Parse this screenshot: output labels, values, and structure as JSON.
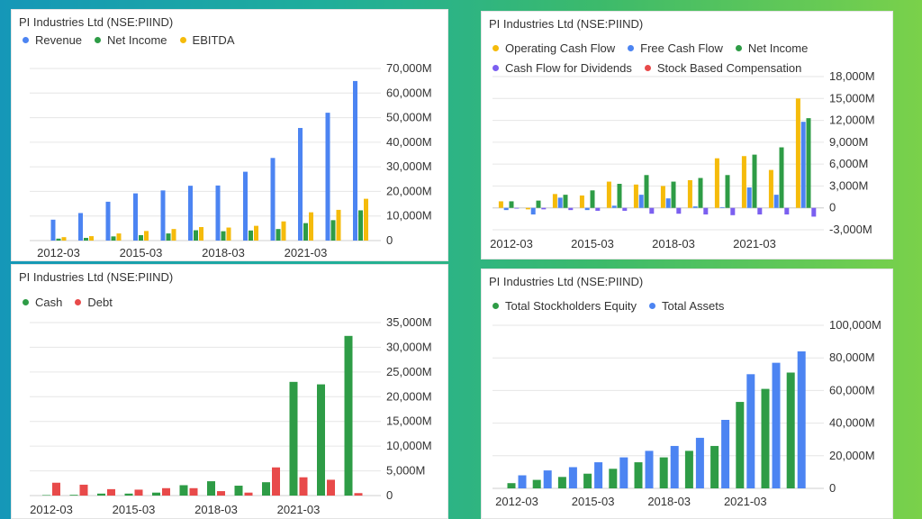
{
  "chart_data": [
    {
      "type": "bar",
      "title": "PI Industries Ltd (NSE:PIIND)",
      "categories": [
        "2012-03",
        "2013-03",
        "2014-03",
        "2015-03",
        "2016-03",
        "2017-03",
        "2018-03",
        "2019-03",
        "2020-03",
        "2021-03",
        "2022-03",
        "2023-03"
      ],
      "x_tick_labels": [
        "2012-03",
        "2015-03",
        "2018-03",
        "2021-03"
      ],
      "series": [
        {
          "name": "Revenue",
          "color": "#4c84f2",
          "values": [
            8500,
            11200,
            15800,
            19200,
            20400,
            22300,
            22400,
            28000,
            33600,
            45800,
            52000,
            64900
          ]
        },
        {
          "name": "Net Income",
          "color": "#2e9c46",
          "values": [
            800,
            1100,
            1700,
            2200,
            2900,
            4200,
            3800,
            4100,
            4700,
            7100,
            8300,
            12300
          ]
        },
        {
          "name": "EBITDA",
          "color": "#f5bb0b",
          "values": [
            1400,
            1800,
            2900,
            3900,
            4700,
            5500,
            5300,
            6000,
            7800,
            11500,
            12500,
            17000
          ]
        }
      ],
      "y_tick_labels": [
        "0",
        "10,000M",
        "20,000M",
        "30,000M",
        "40,000M",
        "50,000M",
        "60,000M",
        "70,000M"
      ],
      "ylim": [
        0,
        70000
      ],
      "grid": true,
      "legend": "top-left"
    },
    {
      "type": "bar",
      "title": "PI Industries Ltd (NSE:PIIND)",
      "categories": [
        "2012-03",
        "2013-03",
        "2014-03",
        "2015-03",
        "2016-03",
        "2017-03",
        "2018-03",
        "2019-03",
        "2020-03",
        "2021-03",
        "2022-03",
        "2023-03"
      ],
      "x_tick_labels": [
        "2012-03",
        "2015-03",
        "2018-03",
        "2021-03"
      ],
      "series": [
        {
          "name": "Operating Cash Flow",
          "color": "#f5bb0b",
          "values": [
            900,
            -200,
            1900,
            1700,
            3600,
            3200,
            3000,
            3800,
            6800,
            7100,
            5200,
            15000
          ]
        },
        {
          "name": "Free Cash Flow",
          "color": "#4c84f2",
          "values": [
            -300,
            -900,
            1400,
            -300,
            300,
            1800,
            1300,
            200,
            100,
            2800,
            1800,
            11800
          ]
        },
        {
          "name": "Net Income",
          "color": "#2e9c46",
          "values": [
            900,
            1000,
            1800,
            2400,
            3300,
            4500,
            3600,
            4100,
            4500,
            7300,
            8300,
            12300
          ]
        },
        {
          "name": "Cash Flow for Dividends",
          "color": "#7b5ff0",
          "values": [
            -100,
            -200,
            -300,
            -400,
            -400,
            -800,
            -800,
            -900,
            -1000,
            -900,
            -900,
            -1200
          ]
        },
        {
          "name": "Stock Based Compensation",
          "color": "#e84a4a",
          "values": [
            0,
            0,
            0,
            0,
            0,
            0,
            0,
            0,
            0,
            0,
            0,
            0
          ]
        }
      ],
      "y_tick_labels": [
        "-3,000M",
        "0",
        "3,000M",
        "6,000M",
        "9,000M",
        "12,000M",
        "15,000M",
        "18,000M"
      ],
      "ylim": [
        -3000,
        18000
      ],
      "grid": true,
      "legend": "top-left"
    },
    {
      "type": "bar",
      "title": "PI Industries Ltd (NSE:PIIND)",
      "categories": [
        "2012-03",
        "2013-03",
        "2014-03",
        "2015-03",
        "2016-03",
        "2017-03",
        "2018-03",
        "2019-03",
        "2020-03",
        "2021-03",
        "2022-03",
        "2023-03"
      ],
      "x_tick_labels": [
        "2012-03",
        "2015-03",
        "2018-03",
        "2021-03"
      ],
      "series": [
        {
          "name": "Cash",
          "color": "#2e9c46",
          "values": [
            100,
            150,
            400,
            400,
            600,
            2100,
            2900,
            2000,
            2700,
            23000,
            22500,
            32300
          ]
        },
        {
          "name": "Debt",
          "color": "#e84a4a",
          "values": [
            2600,
            2200,
            1300,
            1200,
            1500,
            1500,
            900,
            600,
            5700,
            3700,
            3200,
            500
          ]
        }
      ],
      "y_tick_labels": [
        "0",
        "5,000M",
        "10,000M",
        "15,000M",
        "20,000M",
        "25,000M",
        "30,000M",
        "35,000M"
      ],
      "ylim": [
        0,
        35000
      ],
      "grid": true,
      "legend": "top-left"
    },
    {
      "type": "bar",
      "title": "PI Industries Ltd (NSE:PIIND)",
      "categories": [
        "2012-03",
        "2013-03",
        "2014-03",
        "2015-03",
        "2016-03",
        "2017-03",
        "2018-03",
        "2019-03",
        "2020-03",
        "2021-03",
        "2022-03",
        "2023-03"
      ],
      "x_tick_labels": [
        "2012-03",
        "2015-03",
        "2018-03",
        "2021-03"
      ],
      "series": [
        {
          "name": "Total Stockholders Equity",
          "color": "#2e9c46",
          "values": [
            3200,
            5200,
            7000,
            9000,
            12000,
            16000,
            19000,
            23000,
            26000,
            53000,
            61000,
            71000
          ]
        },
        {
          "name": "Total Assets",
          "color": "#4c84f2",
          "values": [
            8000,
            11000,
            13000,
            16000,
            19000,
            23000,
            26000,
            31000,
            42000,
            70000,
            77000,
            84000
          ]
        }
      ],
      "y_tick_labels": [
        "0",
        "20,000M",
        "40,000M",
        "60,000M",
        "80,000M",
        "100,000M"
      ],
      "ylim": [
        0,
        100000
      ],
      "grid": true,
      "legend": "top-left"
    }
  ]
}
